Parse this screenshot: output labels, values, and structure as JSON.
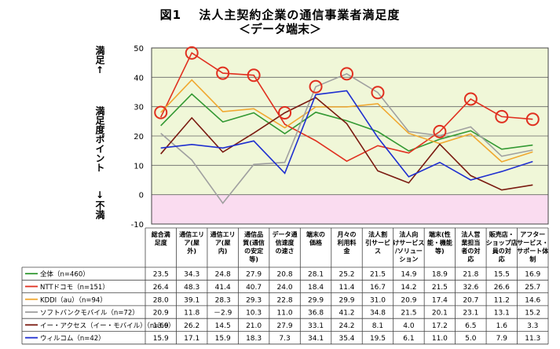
{
  "title": "図1　 法人主契約企業の通信事業者満足度",
  "subtitle": "＜データ端末＞",
  "y_axis_labels": {
    "top": "満足↑",
    "middle": "満足度ポイント",
    "bottom": "↓不満"
  },
  "chart_data": {
    "type": "line",
    "ylim": [
      -10,
      50
    ],
    "yticks": [
      -10,
      0,
      10,
      20,
      30,
      40,
      50
    ],
    "categories": [
      [
        "総合満",
        "足度"
      ],
      [
        "通信エリ",
        "ア(屋",
        "外)"
      ],
      [
        "通信エリ",
        "ア(屋",
        "内)"
      ],
      [
        "通信品",
        "質(通信",
        "の安定",
        "等)"
      ],
      [
        "データ通",
        "信速度",
        "の速さ"
      ],
      [
        "端末の",
        "価格"
      ],
      [
        "月々の",
        "利用料",
        "金"
      ],
      [
        "法人割",
        "引サービ",
        "ス"
      ],
      [
        "法人向",
        "けサービス",
        "/ソリュー",
        "ション"
      ],
      [
        "端末(性",
        "能・機能",
        "等)"
      ],
      [
        "法人営",
        "業担当",
        "者の対",
        "応"
      ],
      [
        "販売店・",
        "ショップ店",
        "員の対",
        "応"
      ],
      [
        "アフター",
        "サービス・",
        "サポート体",
        "制"
      ]
    ],
    "series": [
      {
        "name": "全体（n=460）",
        "color": "#339933",
        "values": [
          23.5,
          34.3,
          24.8,
          27.9,
          20.8,
          28.1,
          25.2,
          21.5,
          14.9,
          18.9,
          21.8,
          15.5,
          16.9
        ],
        "display": [
          "23.5",
          "34.3",
          "24.8",
          "27.9",
          "20.8",
          "28.1",
          "25.2",
          "21.5",
          "14.9",
          "18.9",
          "21.8",
          "15.5",
          "16.9"
        ],
        "circles": []
      },
      {
        "name": "NTTドコモ（n=151）",
        "color": "#e03020",
        "values": [
          26.4,
          48.3,
          41.4,
          40.7,
          24.0,
          18.4,
          11.4,
          16.7,
          14.2,
          21.5,
          32.6,
          26.6,
          25.7
        ],
        "display": [
          "26.4",
          "48.3",
          "41.4",
          "40.7",
          "24.0",
          "18.4",
          "11.4",
          "16.7",
          "14.2",
          "21.5",
          "32.6",
          "26.6",
          "25.7"
        ],
        "circles": [
          1,
          2,
          3,
          9,
          10,
          11,
          12
        ]
      },
      {
        "name": "KDDI（au）（n=94）",
        "color": "#f0a830",
        "values": [
          28.0,
          39.1,
          28.3,
          29.3,
          22.8,
          29.9,
          29.9,
          31.0,
          20.9,
          17.4,
          20.7,
          11.2,
          14.6
        ],
        "display": [
          "28.0",
          "39.1",
          "28.3",
          "29.3",
          "22.8",
          "29.9",
          "29.9",
          "31.0",
          "20.9",
          "17.4",
          "20.7",
          "11.2",
          "14.6"
        ],
        "circles": [
          0
        ]
      },
      {
        "name": "ソフトバンクモバイル（n=72）",
        "color": "#a0a0a0",
        "values": [
          20.9,
          11.8,
          -2.9,
          10.3,
          11.0,
          36.8,
          41.2,
          34.8,
          21.5,
          20.1,
          23.1,
          13.1,
          15.2
        ],
        "display": [
          "20.9",
          "11.8",
          "－2.9",
          "10.3",
          "11.0",
          "36.8",
          "41.2",
          "34.8",
          "21.5",
          "20.1",
          "23.1",
          "13.1",
          "15.2"
        ],
        "circles": [
          5,
          6,
          7
        ]
      },
      {
        "name": "イー・アクセス（イー・モバイル）（n=66）",
        "color": "#7a1a10",
        "values": [
          13.9,
          26.2,
          14.5,
          21.0,
          27.9,
          33.1,
          24.2,
          8.1,
          4.0,
          17.2,
          6.5,
          1.6,
          3.3
        ],
        "display": [
          "13.9",
          "26.2",
          "14.5",
          "21.0",
          "27.9",
          "33.1",
          "24.2",
          "8.1",
          "4.0",
          "17.2",
          "6.5",
          "1.6",
          "3.3"
        ],
        "circles": [
          4
        ]
      },
      {
        "name": "ウィルコム（n=42）",
        "color": "#1f2fd0",
        "values": [
          15.9,
          17.1,
          15.9,
          18.3,
          7.3,
          34.1,
          35.4,
          19.5,
          6.1,
          11.0,
          5.0,
          7.9,
          11.3
        ],
        "display": [
          "15.9",
          "17.1",
          "15.9",
          "18.3",
          "7.3",
          "34.1",
          "35.4",
          "19.5",
          "6.1",
          "11.0",
          "5.0",
          "7.9",
          "11.3"
        ],
        "circles": []
      }
    ],
    "highlight_color": "#e03020",
    "bands": {
      "positive": "#f0f7d8",
      "negative": "#fadcf0"
    },
    "grid": true
  }
}
